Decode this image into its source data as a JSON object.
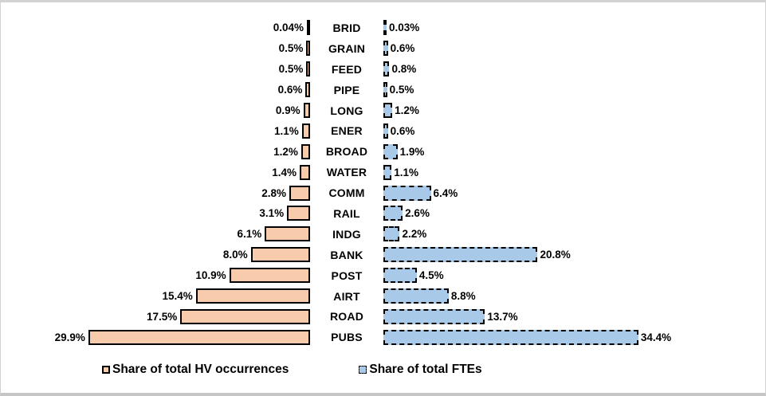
{
  "chart_data": {
    "type": "bar",
    "subtype": "diverging-horizontal-tornado",
    "title": "",
    "xlabel": "",
    "ylabel": "",
    "axes_visible": false,
    "grid": false,
    "legend_position": "bottom",
    "categories": [
      "BRID",
      "GRAIN",
      "FEED",
      "PIPE",
      "LONG",
      "ENER",
      "BROAD",
      "WATER",
      "COMM",
      "RAIL",
      "INDG",
      "BANK",
      "POST",
      "AIRT",
      "ROAD",
      "PUBS"
    ],
    "series": [
      {
        "name": "Share of total HV occurrences",
        "side": "left",
        "unit": "%",
        "values": [
          0.04,
          0.5,
          0.5,
          0.6,
          0.9,
          1.1,
          1.2,
          1.4,
          2.8,
          3.1,
          6.1,
          8.0,
          10.9,
          15.4,
          17.5,
          29.9
        ],
        "labels": [
          "0.04%",
          "0.5%",
          "0.5%",
          "0.6%",
          "0.9%",
          "1.1%",
          "1.2%",
          "1.4%",
          "2.8%",
          "3.1%",
          "6.1%",
          "8.0%",
          "10.9%",
          "15.4%",
          "17.5%",
          "29.9%"
        ],
        "fill_color": "#F8CBAD",
        "border_color": "#000000",
        "border_style": "solid"
      },
      {
        "name": "Share of total FTEs",
        "side": "right",
        "unit": "%",
        "values": [
          0.03,
          0.6,
          0.8,
          0.5,
          1.2,
          0.6,
          1.9,
          1.1,
          6.4,
          2.6,
          2.2,
          20.8,
          4.5,
          8.8,
          13.7,
          34.4
        ],
        "labels": [
          "0.03%",
          "0.6%",
          "0.8%",
          "0.5%",
          "1.2%",
          "0.6%",
          "1.9%",
          "1.1%",
          "6.4%",
          "2.6%",
          "2.2%",
          "20.8%",
          "4.5%",
          "8.8%",
          "13.7%",
          "34.4%"
        ],
        "fill_color": "#A9C9E9",
        "border_color": "#000000",
        "border_style": "dashed"
      }
    ],
    "xlim_each_side": [
      0,
      36
    ],
    "legend": [
      {
        "label": "Share of total HV occurrences",
        "swatch_color": "#F8CBAD",
        "swatch_border": "solid"
      },
      {
        "label": "Share of total FTEs",
        "swatch_color": "#A9C9E9",
        "swatch_border": "dashed"
      }
    ]
  },
  "colors": {
    "left_bar_fill": "#F8CBAD",
    "right_bar_fill": "#A9C9E9",
    "bar_border": "#000000",
    "text": "#000000",
    "frame_border": "#d2d2d2",
    "background": "#ffffff"
  }
}
